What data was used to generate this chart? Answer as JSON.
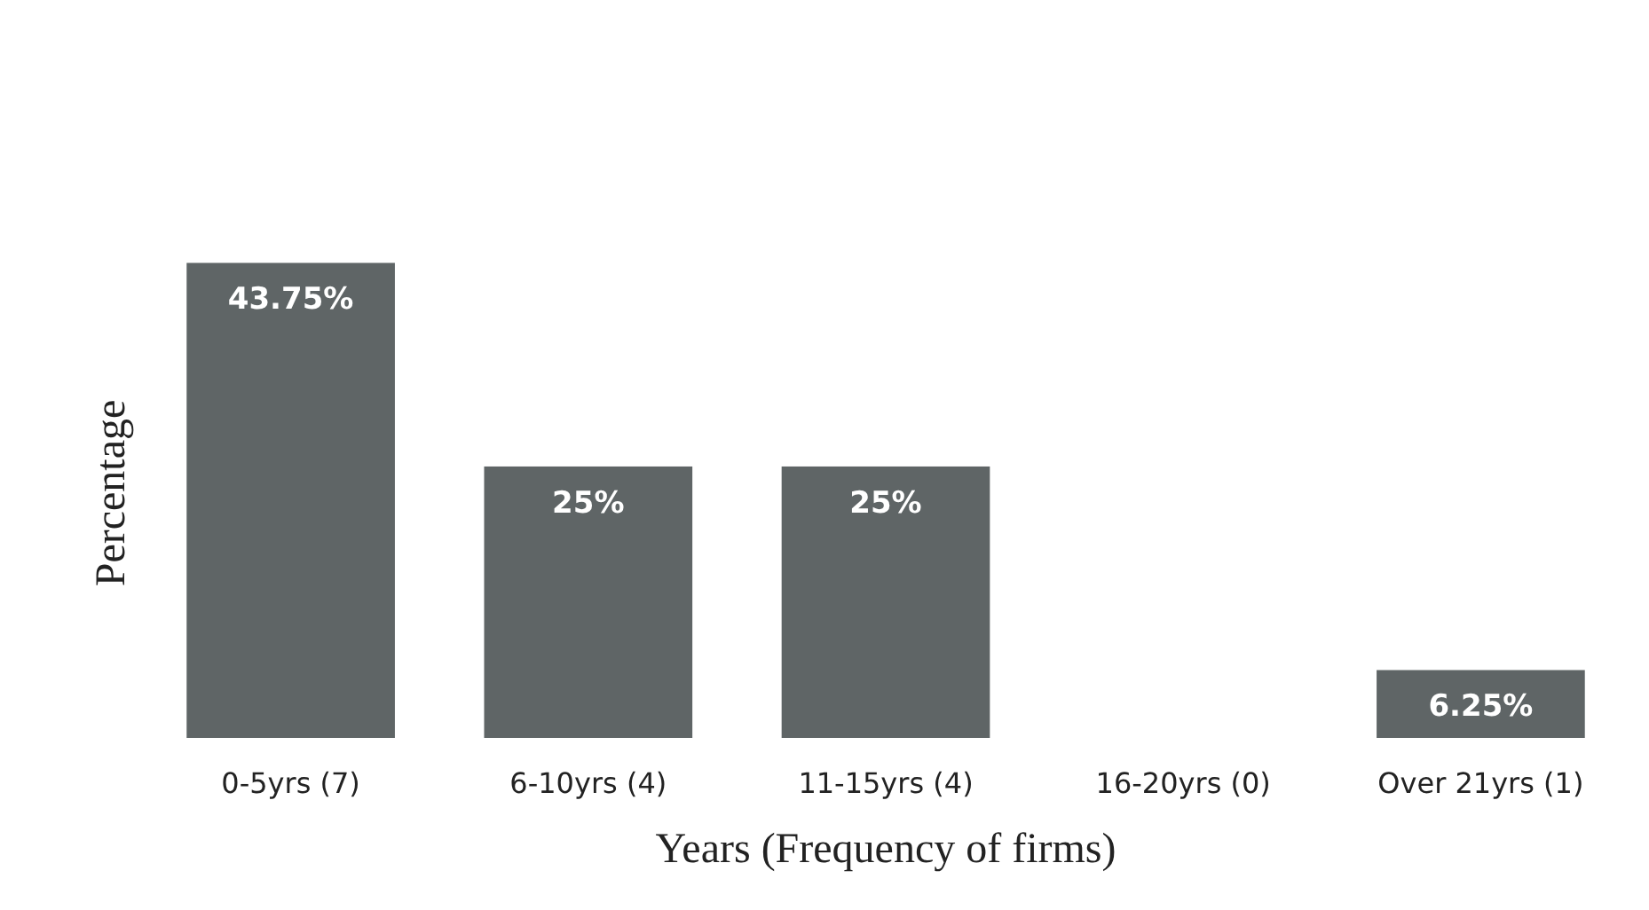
{
  "chart_data": {
    "type": "bar",
    "xlabel": "Years (Frequency of firms)",
    "ylabel": "Percentage",
    "categories": [
      "0-5yrs (7)",
      "6-10yrs (4)",
      "11-15yrs (4)",
      "16-20yrs (0)",
      "Over 21yrs (1)"
    ],
    "values": [
      43.75,
      25,
      25,
      0,
      6.25
    ],
    "value_labels": [
      "43.75%",
      "25%",
      "25%",
      null,
      "6.25%"
    ],
    "color": "#5f6566"
  }
}
